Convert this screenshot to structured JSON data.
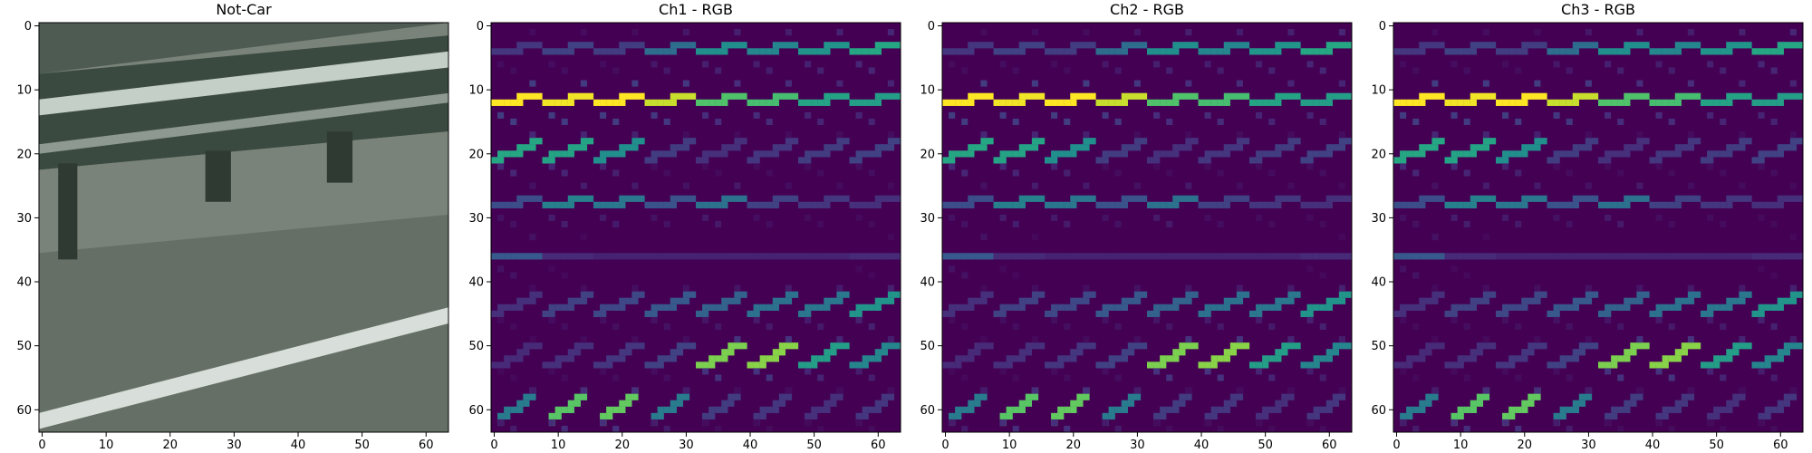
{
  "chart_data": [
    {
      "type": "image",
      "title": "Not-Car",
      "xlim": [
        0,
        63
      ],
      "ylim": [
        63,
        0
      ],
      "xticks": [
        0,
        10,
        20,
        30,
        40,
        50,
        60
      ],
      "yticks": [
        0,
        10,
        20,
        30,
        40,
        50,
        60
      ],
      "colors": {
        "road": "#7a8379",
        "asphalt": "#666f65",
        "barrier": "#3a4a40",
        "rail_highlight": "#c4cfc8",
        "post": "#2f3a33",
        "lane_line": "#d8dfda",
        "top_band": "#4e5b52"
      }
    },
    {
      "type": "heatmap",
      "title": "Ch1 - RGB",
      "xlim": [
        0,
        63
      ],
      "ylim": [
        63,
        0
      ],
      "xticks": [
        0,
        10,
        20,
        30,
        40,
        50,
        60
      ],
      "yticks": [
        0,
        10,
        20,
        30,
        40,
        50,
        60
      ],
      "colormap": "viridis",
      "cells_per_side": 8,
      "pixels_per_cell": 8,
      "cell_rows": [
        {
          "angle": 10,
          "values": [
            0.16,
            0.2,
            0.18,
            0.36,
            0.5,
            0.46,
            0.52,
            0.6
          ]
        },
        {
          "angle": 10,
          "values": [
            1.0,
            0.98,
            1.0,
            0.92,
            0.72,
            0.7,
            0.58,
            0.56
          ]
        },
        {
          "angle": 20,
          "values": [
            0.6,
            0.58,
            0.5,
            0.18,
            0.14,
            0.16,
            0.18,
            0.2
          ]
        },
        {
          "angle": 10,
          "values": [
            0.24,
            0.44,
            0.4,
            0.26,
            0.38,
            0.2,
            0.16,
            0.14
          ]
        },
        {
          "angle": 0,
          "values": [
            0.28,
            0.12,
            0.1,
            0.1,
            0.1,
            0.1,
            0.1,
            0.12
          ]
        },
        {
          "angle": 20,
          "values": [
            0.14,
            0.2,
            0.22,
            0.28,
            0.32,
            0.38,
            0.4,
            0.52
          ]
        },
        {
          "angle": 30,
          "values": [
            0.12,
            0.14,
            0.16,
            0.2,
            0.8,
            0.82,
            0.56,
            0.46
          ]
        },
        {
          "angle": 35,
          "values": [
            0.42,
            0.74,
            0.76,
            0.42,
            0.18,
            0.16,
            0.14,
            0.16
          ]
        }
      ]
    },
    {
      "type": "heatmap",
      "title": "Ch2 - RGB",
      "xlim": [
        0,
        63
      ],
      "ylim": [
        63,
        0
      ],
      "xticks": [
        0,
        10,
        20,
        30,
        40,
        50,
        60
      ],
      "yticks": [
        0,
        10,
        20,
        30,
        40,
        50,
        60
      ],
      "colormap": "viridis",
      "cells_per_side": 8,
      "pixels_per_cell": 8,
      "cell_rows": [
        {
          "angle": 10,
          "values": [
            0.16,
            0.2,
            0.18,
            0.36,
            0.5,
            0.46,
            0.52,
            0.6
          ]
        },
        {
          "angle": 10,
          "values": [
            1.0,
            0.98,
            1.0,
            0.92,
            0.72,
            0.7,
            0.58,
            0.56
          ]
        },
        {
          "angle": 20,
          "values": [
            0.6,
            0.58,
            0.5,
            0.18,
            0.14,
            0.16,
            0.18,
            0.2
          ]
        },
        {
          "angle": 10,
          "values": [
            0.24,
            0.44,
            0.4,
            0.26,
            0.38,
            0.2,
            0.16,
            0.14
          ]
        },
        {
          "angle": 0,
          "values": [
            0.28,
            0.12,
            0.1,
            0.1,
            0.1,
            0.1,
            0.1,
            0.12
          ]
        },
        {
          "angle": 20,
          "values": [
            0.14,
            0.2,
            0.22,
            0.28,
            0.32,
            0.38,
            0.4,
            0.52
          ]
        },
        {
          "angle": 30,
          "values": [
            0.12,
            0.14,
            0.16,
            0.2,
            0.8,
            0.82,
            0.56,
            0.46
          ]
        },
        {
          "angle": 35,
          "values": [
            0.42,
            0.74,
            0.76,
            0.42,
            0.18,
            0.16,
            0.14,
            0.16
          ]
        }
      ]
    },
    {
      "type": "heatmap",
      "title": "Ch3 - RGB",
      "xlim": [
        0,
        63
      ],
      "ylim": [
        63,
        0
      ],
      "xticks": [
        0,
        10,
        20,
        30,
        40,
        50,
        60
      ],
      "yticks": [
        0,
        10,
        20,
        30,
        40,
        50,
        60
      ],
      "colormap": "viridis",
      "cells_per_side": 8,
      "pixels_per_cell": 8,
      "cell_rows": [
        {
          "angle": 10,
          "values": [
            0.16,
            0.2,
            0.18,
            0.36,
            0.5,
            0.46,
            0.52,
            0.6
          ]
        },
        {
          "angle": 10,
          "values": [
            1.0,
            0.98,
            1.0,
            0.92,
            0.72,
            0.7,
            0.58,
            0.56
          ]
        },
        {
          "angle": 20,
          "values": [
            0.6,
            0.58,
            0.5,
            0.18,
            0.14,
            0.16,
            0.18,
            0.2
          ]
        },
        {
          "angle": 10,
          "values": [
            0.24,
            0.44,
            0.4,
            0.26,
            0.38,
            0.2,
            0.16,
            0.14
          ]
        },
        {
          "angle": 0,
          "values": [
            0.28,
            0.12,
            0.1,
            0.1,
            0.1,
            0.1,
            0.1,
            0.12
          ]
        },
        {
          "angle": 20,
          "values": [
            0.14,
            0.2,
            0.22,
            0.28,
            0.32,
            0.38,
            0.4,
            0.52
          ]
        },
        {
          "angle": 30,
          "values": [
            0.12,
            0.14,
            0.16,
            0.2,
            0.8,
            0.82,
            0.56,
            0.46
          ]
        },
        {
          "angle": 35,
          "values": [
            0.42,
            0.74,
            0.76,
            0.42,
            0.18,
            0.16,
            0.14,
            0.16
          ]
        }
      ]
    }
  ]
}
